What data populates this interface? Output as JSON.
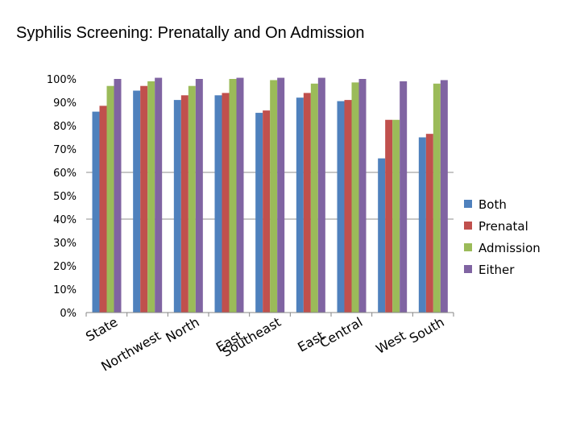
{
  "slide": {
    "title": "Syphilis Screening:  Prenatally and On Admission"
  },
  "chart_data": {
    "type": "bar",
    "title": "Syphilis Screening:  Prenatally and On Admission",
    "xlabel": "",
    "ylabel": "",
    "ylim": [
      0,
      100
    ],
    "yticks": [
      "0%",
      "10%",
      "20%",
      "30%",
      "40%",
      "50%",
      "60%",
      "70%",
      "80%",
      "90%",
      "100%"
    ],
    "legend_position": "right",
    "grid": "major horizontal at 40% and 60%",
    "categories": [
      "State",
      "Northwest",
      "North",
      "East",
      "Southeast",
      "East",
      "Central",
      "West",
      "South"
    ],
    "series": [
      {
        "name": "Both",
        "color": "#4F81BD",
        "values": [
          86,
          95,
          91,
          93,
          85.5,
          92,
          90.5,
          66,
          75
        ]
      },
      {
        "name": "Prenatal",
        "color": "#C0504D",
        "values": [
          88.5,
          97,
          93,
          94,
          86.5,
          94,
          91,
          82.5,
          76.5
        ]
      },
      {
        "name": "Admission",
        "color": "#9BBB59",
        "values": [
          97,
          99,
          97,
          100,
          99.5,
          98,
          98.5,
          82.5,
          98
        ]
      },
      {
        "name": "Either",
        "color": "#8064A2",
        "values": [
          100,
          100.5,
          100,
          100.5,
          100.5,
          100.5,
          100,
          99,
          99.5
        ]
      }
    ]
  }
}
